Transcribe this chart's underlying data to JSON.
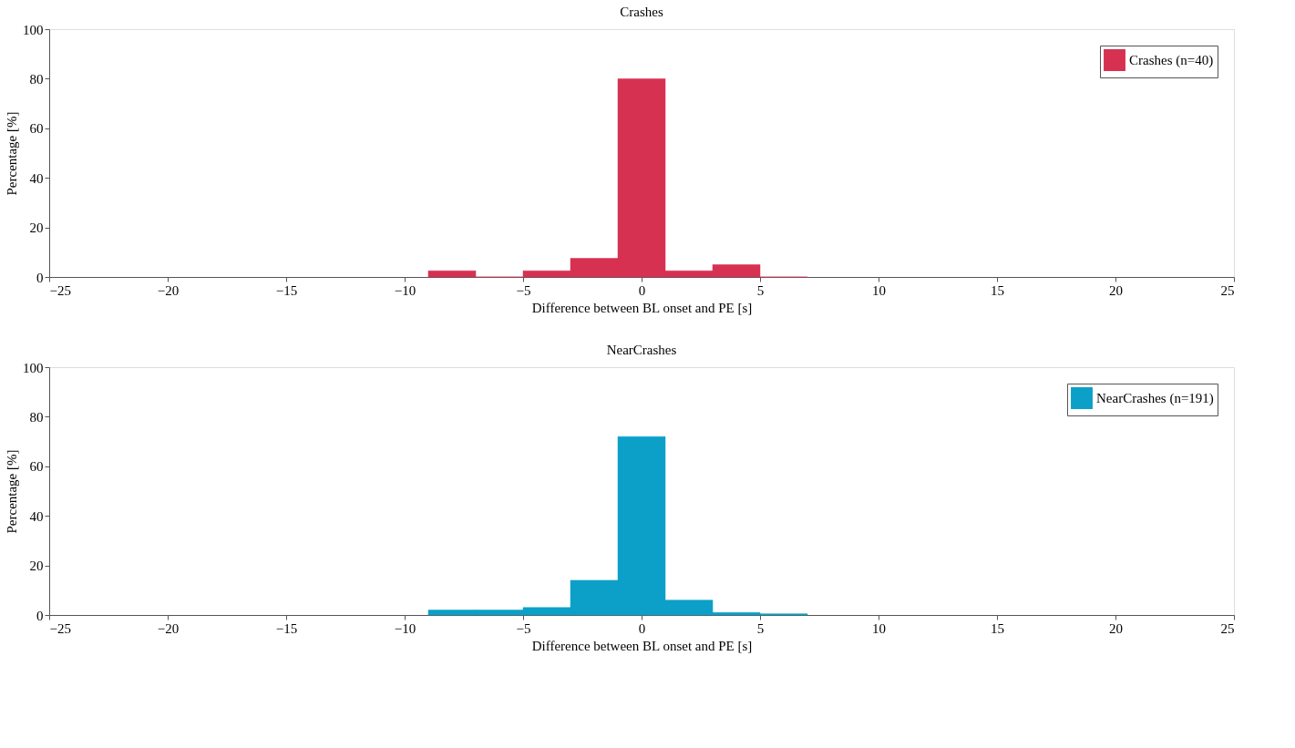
{
  "chart_data": [
    {
      "type": "histogram",
      "title": "Crashes",
      "xlabel": "Difference between BL onset and PE [s]",
      "ylabel": "Percentage [%]",
      "bins": [
        -9,
        -7,
        -5,
        -3,
        -1,
        1,
        3,
        5,
        7
      ],
      "series": [
        {
          "name": "Crashes (n=40)",
          "color": "#d73152",
          "values": [
            2.5,
            0,
            2.5,
            7.5,
            80,
            2.5,
            5,
            0
          ]
        }
      ],
      "xlim": [
        -25,
        25
      ],
      "xticks": [
        -25,
        -20,
        -15,
        -10,
        -5,
        0,
        5,
        10,
        15,
        20,
        25
      ],
      "ylim": [
        0,
        100
      ],
      "yticks": [
        0,
        20,
        40,
        60,
        80,
        100
      ],
      "grid": false,
      "legend": "top right"
    },
    {
      "type": "histogram",
      "title": "NearCrashes",
      "xlabel": "Difference between BL onset and PE [s]",
      "ylabel": "Percentage [%]",
      "bins": [
        -9,
        -7,
        -5,
        -3,
        -1,
        1,
        3,
        5,
        7
      ],
      "series": [
        {
          "name": "NearCrashes (n=191)",
          "color": "#0ca0c8",
          "values": [
            2,
            2,
            3,
            14,
            72,
            6,
            1,
            0.5
          ]
        }
      ],
      "xlim": [
        -25,
        25
      ],
      "xticks": [
        -25,
        -20,
        -15,
        -10,
        -5,
        0,
        5,
        10,
        15,
        20,
        25
      ],
      "ylim": [
        0,
        100
      ],
      "yticks": [
        0,
        20,
        40,
        60,
        80,
        100
      ],
      "grid": false,
      "legend": "top right"
    }
  ]
}
